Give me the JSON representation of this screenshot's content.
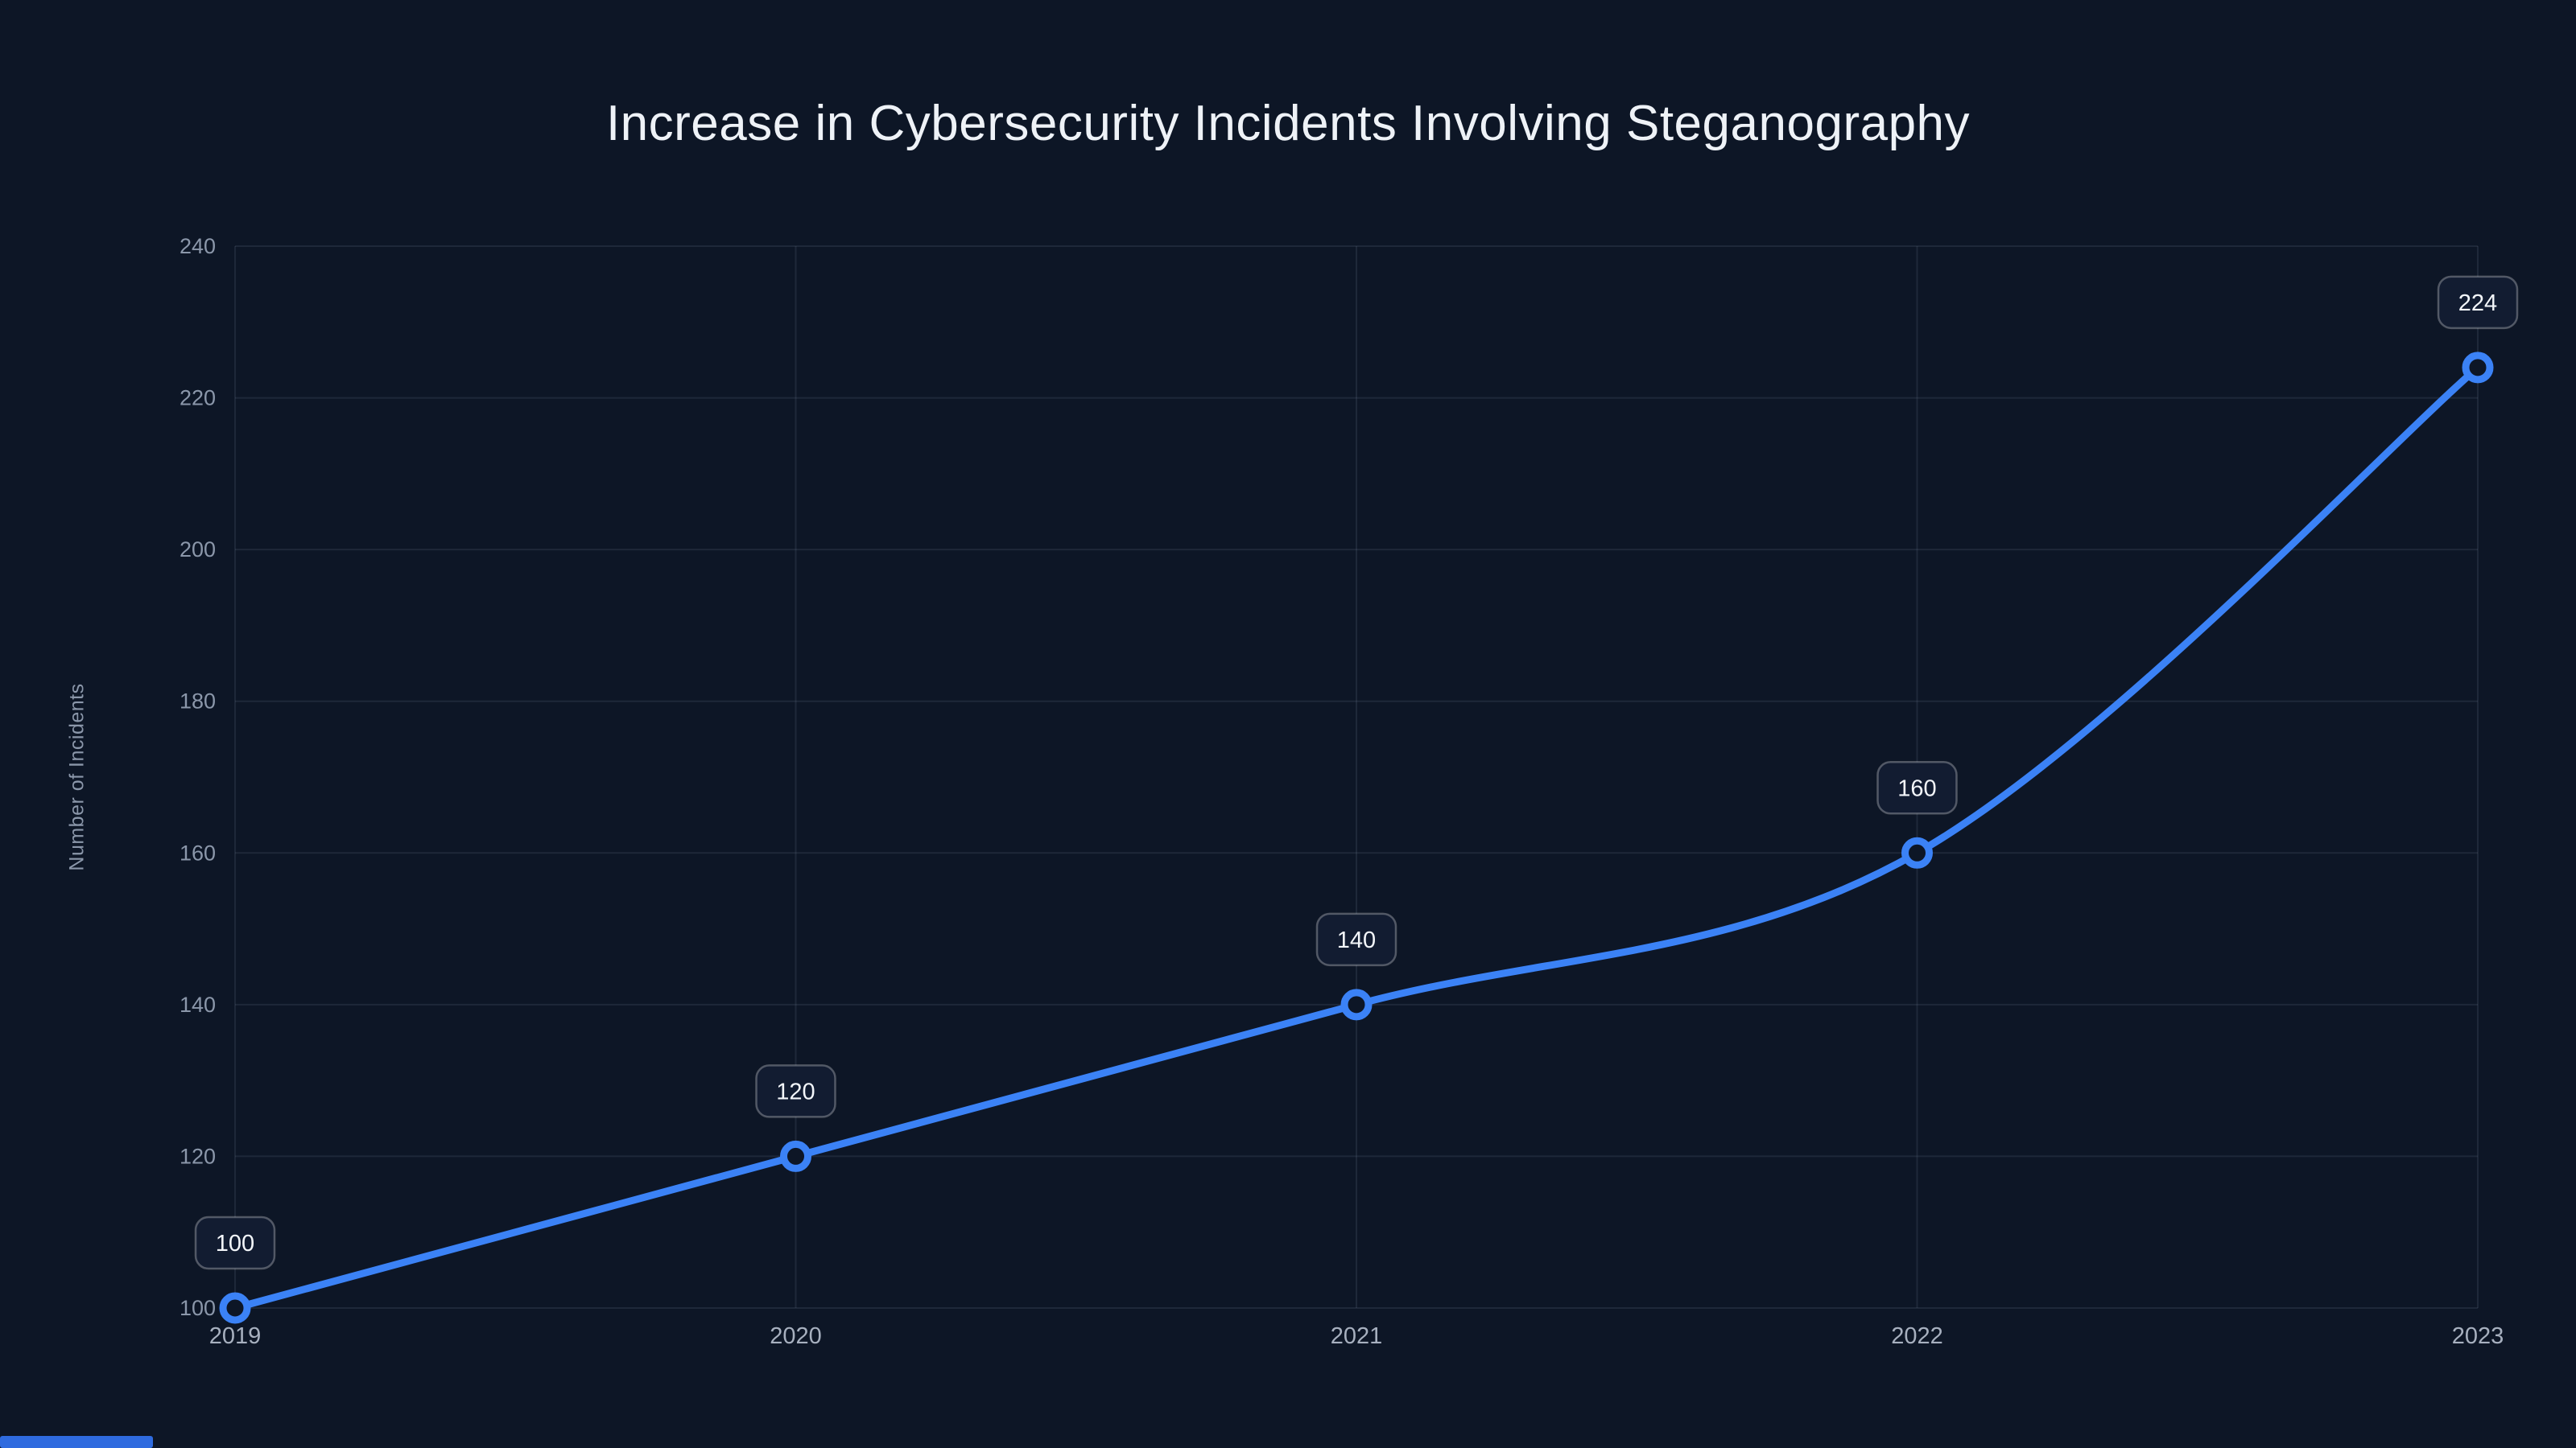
{
  "page": {
    "background_color": "#0d1626",
    "accent_color": "#2f6bdf"
  },
  "chart_data": {
    "type": "line",
    "title": "Increase in Cybersecurity Incidents Involving Steganography",
    "xlabel": "",
    "ylabel": "Number of Incidents",
    "categories": [
      "2019",
      "2020",
      "2021",
      "2022",
      "2023"
    ],
    "series": [
      {
        "name": "Incidents",
        "values": [
          100,
          120,
          140,
          160,
          224
        ]
      }
    ],
    "point_labels": [
      "100",
      "120",
      "140",
      "160",
      "224"
    ],
    "ylim": [
      100,
      240
    ],
    "ytick_step": 20,
    "yticks": [
      100,
      120,
      140,
      160,
      180,
      200,
      220,
      240
    ],
    "grid": true,
    "legend": "none",
    "line_color": "#3b82f6",
    "marker_fill": "#0d1626",
    "grid_color": "rgba(148,163,184,0.13)",
    "tick_color": "#8b97aa",
    "x_tick_color": "#a7b0bf",
    "label_box_fill": "#121c31",
    "label_box_stroke": "rgba(255,255,255,0.28)",
    "label_text_color": "#f3f6fa"
  }
}
